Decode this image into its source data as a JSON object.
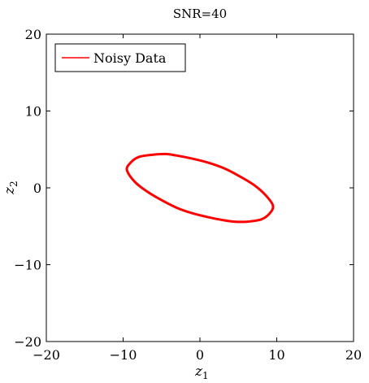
{
  "chart_data": {
    "type": "line",
    "title": "SNR=40",
    "xlabel": "z",
    "xlabel_sub": "1",
    "ylabel": "z",
    "ylabel_sub": "2",
    "xlim": [
      -20,
      20
    ],
    "ylim": [
      -20,
      20
    ],
    "xticks": [
      -20,
      -10,
      0,
      10,
      20
    ],
    "yticks": [
      -20,
      -10,
      0,
      10,
      20
    ],
    "xtick_labels": [
      "−20",
      "−10",
      "0",
      "10",
      "20"
    ],
    "ytick_labels": [
      "−20",
      "−10",
      "0",
      "10",
      "20"
    ],
    "grid": false,
    "legend_position": "top-left",
    "series": [
      {
        "name": "Noisy Data",
        "color": "#ff0000",
        "x": [
          -9.5,
          -9.1,
          -8.0,
          -6.2,
          -4.5,
          -3.0,
          -1.0,
          1.0,
          3.0,
          5.0,
          7.0,
          8.5,
          9.5,
          9.1,
          8.0,
          6.2,
          4.5,
          3.0,
          1.0,
          -1.0,
          -3.0,
          -5.0,
          -7.0,
          -8.5,
          -9.5
        ],
        "y": [
          2.3,
          3.2,
          4.0,
          4.3,
          4.4,
          4.2,
          3.8,
          3.3,
          2.6,
          1.6,
          0.4,
          -0.9,
          -2.3,
          -3.3,
          -4.1,
          -4.4,
          -4.4,
          -4.2,
          -3.8,
          -3.3,
          -2.6,
          -1.6,
          -0.4,
          0.8,
          2.3
        ]
      }
    ]
  }
}
